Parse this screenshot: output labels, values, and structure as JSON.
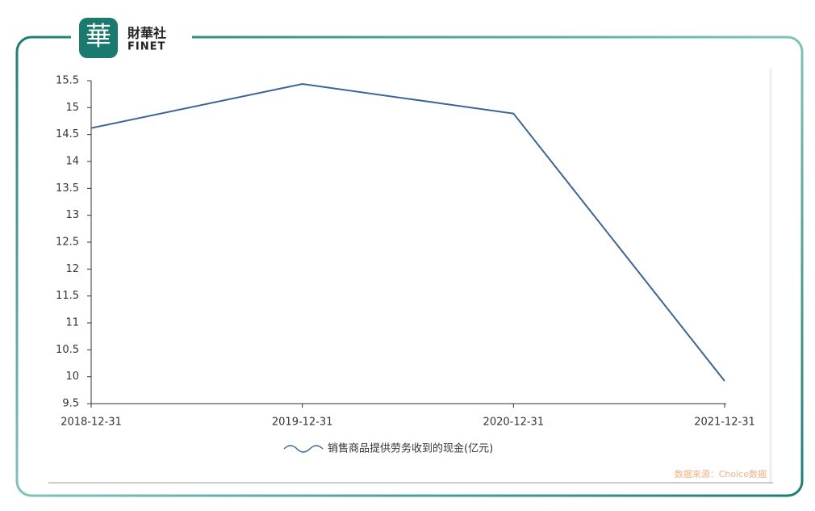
{
  "logo": {
    "icon": "華",
    "name": "財華社",
    "latin": "FINET"
  },
  "chart_data": {
    "type": "line",
    "categories": [
      "2018-12-31",
      "2019-12-31",
      "2020-12-31",
      "2021-12-31"
    ],
    "series": [
      {
        "name": "销售商品提供劳务收到的现金(亿元)",
        "color": "#3d6494",
        "values": [
          14.62,
          15.44,
          14.89,
          9.92
        ]
      }
    ],
    "ylim": [
      9.5,
      15.5
    ],
    "yticks": [
      9.5,
      10,
      10.5,
      11,
      11.5,
      12,
      12.5,
      13,
      13.5,
      14,
      14.5,
      15,
      15.5
    ],
    "source": "数据来源：Choice数据"
  }
}
